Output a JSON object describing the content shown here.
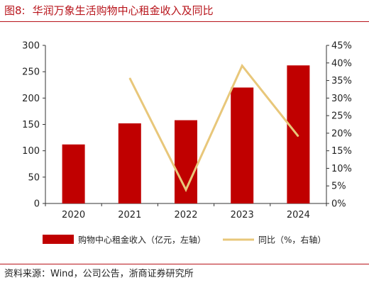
{
  "header": {
    "figure_number": "图8:",
    "title": "华润万象生活购物中心租金收入及同比"
  },
  "source": "资料来源：Wind，公司公告，浙商证券研究所",
  "colors": {
    "bar": "#c00000",
    "line": "#e8c77a",
    "title": "#b8141b"
  },
  "chart_data": {
    "type": "bar",
    "categories": [
      "2020",
      "2021",
      "2022",
      "2023",
      "2024"
    ],
    "series": [
      {
        "name": "购物中心租金收入（亿元，左轴）",
        "type": "bar",
        "axis": "left",
        "values": [
          112,
          152,
          158,
          220,
          262
        ]
      },
      {
        "name": "同比（%，右轴）",
        "type": "line",
        "axis": "right",
        "values": [
          null,
          35.7,
          3.9,
          39.2,
          19.1
        ]
      }
    ],
    "y_left": {
      "ylim": [
        0,
        300
      ],
      "ticks": [
        "0",
        "50",
        "100",
        "150",
        "200",
        "250",
        "300"
      ]
    },
    "y_right": {
      "ylim": [
        0,
        45
      ],
      "ticks": [
        "0%",
        "5%",
        "10%",
        "15%",
        "20%",
        "25%",
        "30%",
        "35%",
        "40%",
        "45%"
      ]
    },
    "grid": false,
    "legend_placement": "bottom"
  }
}
